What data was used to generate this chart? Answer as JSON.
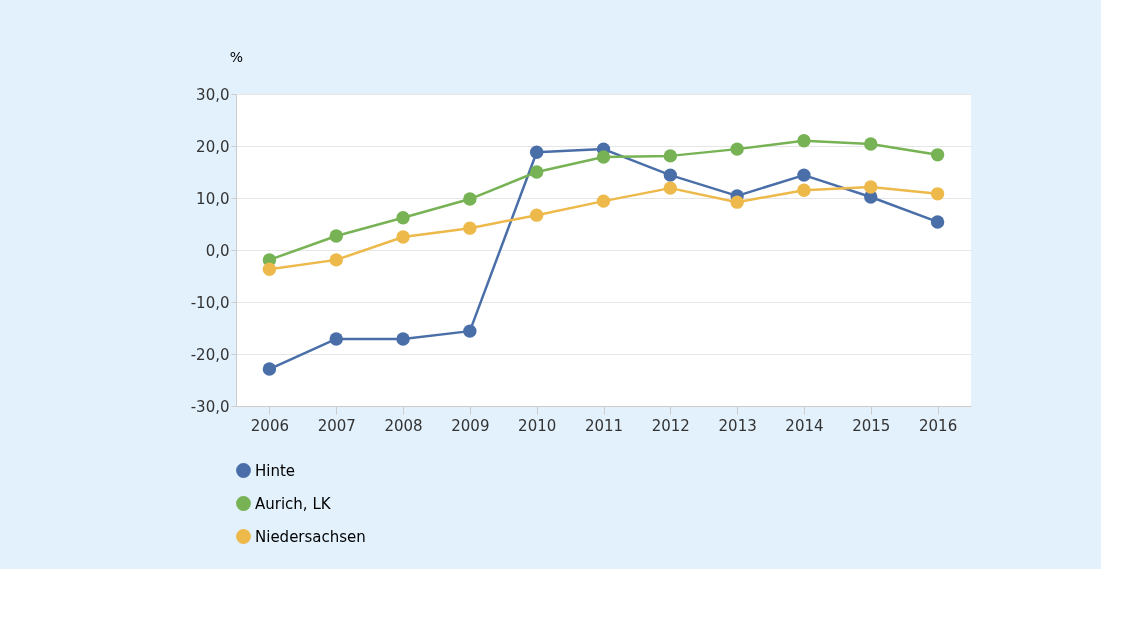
{
  "chart_data": {
    "type": "line",
    "ylabel": "%",
    "categories": [
      "2006",
      "2007",
      "2008",
      "2009",
      "2010",
      "2011",
      "2012",
      "2013",
      "2014",
      "2015",
      "2016"
    ],
    "series": [
      {
        "name": "Hinte",
        "color": "#4a6fa8",
        "values": [
          -22.9,
          -17.1,
          -17.1,
          -15.6,
          18.8,
          19.4,
          14.4,
          10.4,
          14.4,
          10.2,
          5.4
        ]
      },
      {
        "name": "Aurich, LK",
        "color": "#77b255",
        "values": [
          -1.9,
          2.7,
          6.2,
          9.8,
          15.0,
          17.9,
          18.1,
          19.4,
          21.0,
          20.4,
          18.3
        ]
      },
      {
        "name": "Niedersachsen",
        "color": "#edb94a",
        "values": [
          -3.7,
          -1.9,
          2.5,
          4.2,
          6.7,
          9.4,
          11.9,
          9.2,
          11.5,
          12.1,
          10.8
        ]
      }
    ],
    "ylim": [
      -30,
      30
    ],
    "yticks": [
      {
        "value": -30,
        "label": "-30,0"
      },
      {
        "value": -20,
        "label": "-20,0"
      },
      {
        "value": -10,
        "label": "-10,0"
      },
      {
        "value": 0,
        "label": "0,0"
      },
      {
        "value": 10,
        "label": "10,0"
      },
      {
        "value": 20,
        "label": "20,0"
      },
      {
        "value": 30,
        "label": "30,0"
      }
    ],
    "grid": "y",
    "legend": "bottom left",
    "marker": "circle",
    "line_style": "solid"
  }
}
